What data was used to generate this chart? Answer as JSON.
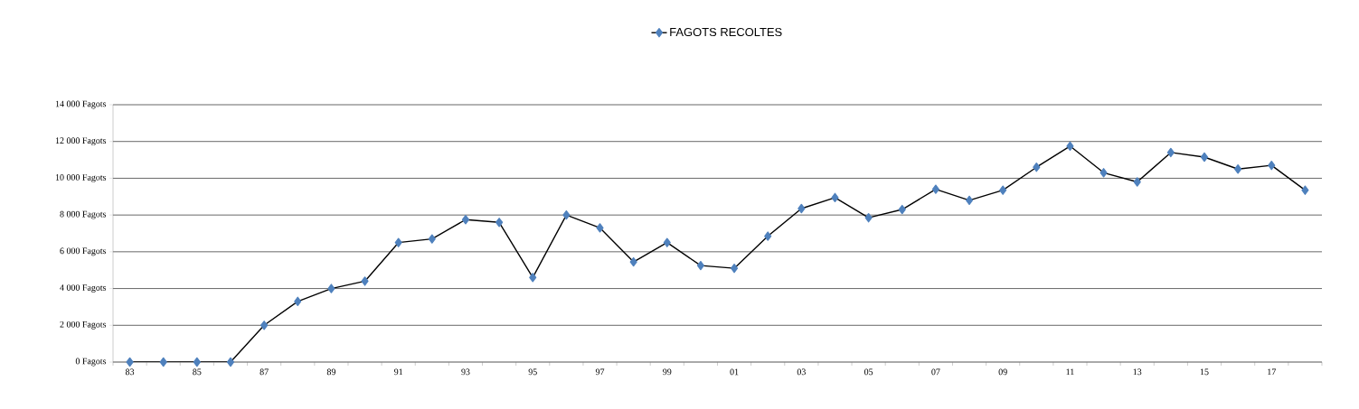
{
  "chart_data": {
    "type": "line",
    "categories": [
      "83",
      null,
      "85",
      null,
      "87",
      null,
      "89",
      null,
      "91",
      null,
      "93",
      null,
      "95",
      null,
      "97",
      null,
      "99",
      null,
      "01",
      null,
      "03",
      null,
      "05",
      null,
      "07",
      null,
      "09",
      null,
      "11",
      null,
      "13",
      null,
      "15",
      null,
      "17",
      null
    ],
    "series": [
      {
        "name": "FAGOTS RECOLTES",
        "color": "#4f81bd",
        "values": [
          0,
          0,
          0,
          0,
          2000,
          3300,
          4000,
          4400,
          6500,
          6700,
          7750,
          7600,
          4600,
          8000,
          7300,
          5450,
          6500,
          5250,
          5100,
          6850,
          8350,
          8950,
          7850,
          8300,
          9400,
          8800,
          9350,
          10600,
          11750,
          10300,
          9800,
          11400,
          11150,
          10500,
          10700,
          9350
        ]
      }
    ],
    "ylim": [
      0,
      14000
    ],
    "yticks": [
      {
        "value": 0,
        "label": "0 Fagots"
      },
      {
        "value": 2000,
        "label": "2 000 Fagots"
      },
      {
        "value": 4000,
        "label": "4 000 Fagots"
      },
      {
        "value": 6000,
        "label": "6 000 Fagots"
      },
      {
        "value": 8000,
        "label": "8 000 Fagots"
      },
      {
        "value": 10000,
        "label": "10 000 Fagots"
      },
      {
        "value": 12000,
        "label": "12 000 Fagots"
      },
      {
        "value": 14000,
        "label": "14 000 Fagots"
      }
    ],
    "grid": "y",
    "legend": "top",
    "marker": "diamond",
    "line_style": "solid"
  }
}
